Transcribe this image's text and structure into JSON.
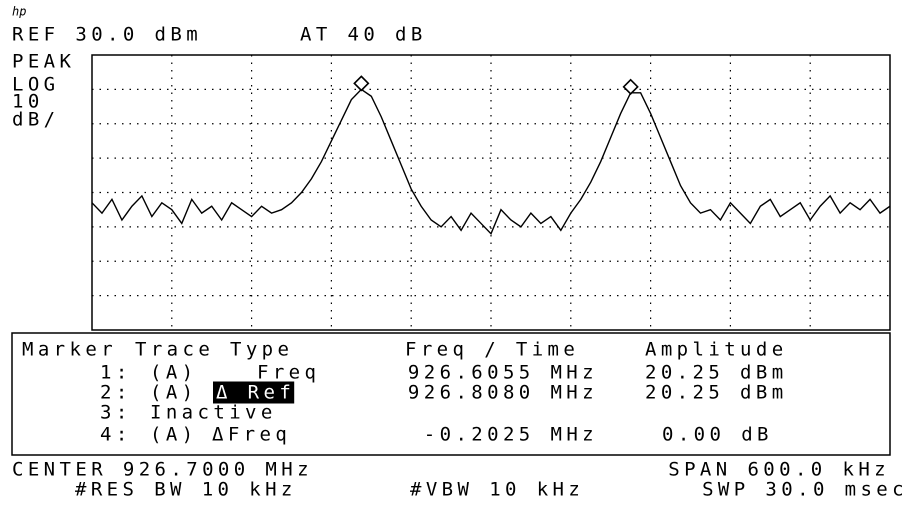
{
  "header": {
    "logo": "hp",
    "ref": "REF 30.0 dBm",
    "atten": "AT 40 dB"
  },
  "side": [
    "PEAK",
    "LOG",
    "10",
    "dB/"
  ],
  "trace": {
    "ylim": [
      -50,
      30
    ],
    "yticks": [
      -50,
      -40,
      -30,
      -20,
      -10,
      0,
      10,
      20,
      30
    ],
    "values": [
      -13,
      -16,
      -12,
      -18,
      -14,
      -11,
      -17,
      -13,
      -15,
      -19,
      -12,
      -16,
      -14,
      -18,
      -13,
      -15,
      -17,
      -14,
      -16,
      -15,
      -13,
      -10,
      -6,
      -1,
      5,
      11,
      17,
      20,
      18,
      12,
      5,
      -2,
      -9,
      -14,
      -18,
      -20,
      -17,
      -21,
      -16,
      -19,
      -22,
      -15,
      -18,
      -20,
      -16,
      -19,
      -17,
      -21,
      -16,
      -12,
      -7,
      -1,
      6,
      13,
      19,
      19,
      13,
      6,
      -1,
      -8,
      -13,
      -16,
      -15,
      -18,
      -13,
      -16,
      -19,
      -14,
      -12,
      -17,
      -15,
      -13,
      -18,
      -14,
      -11,
      -16,
      -13,
      -15,
      -12,
      -16,
      -14
    ]
  },
  "markers": {
    "columns": [
      "Marker",
      "Trace",
      "Type",
      "Freq / Time",
      "Amplitude"
    ],
    "rows": [
      {
        "num": "1:",
        "trace": "(A)",
        "type": "Freq",
        "freq": "926.6055 MHz",
        "amp": "20.25 dBm"
      },
      {
        "num": "2:",
        "trace": "(A)",
        "type": "Δ Ref",
        "freq": "926.8080 MHz",
        "amp": "20.25 dBm"
      },
      {
        "num": "3:",
        "type": "Inactive"
      },
      {
        "num": "4:",
        "trace": "(A)",
        "type": "ΔFreq",
        "freq": "-0.2025 MHz",
        "amp": "0.00 dB"
      }
    ]
  },
  "footer": {
    "center": "CENTER 926.7000 MHz",
    "span": "SPAN 600.0 kHz",
    "rbw": "#RES BW 10 kHz",
    "vbw": "#VBW 10 kHz",
    "sweep": "SWP 30.0 msec"
  }
}
